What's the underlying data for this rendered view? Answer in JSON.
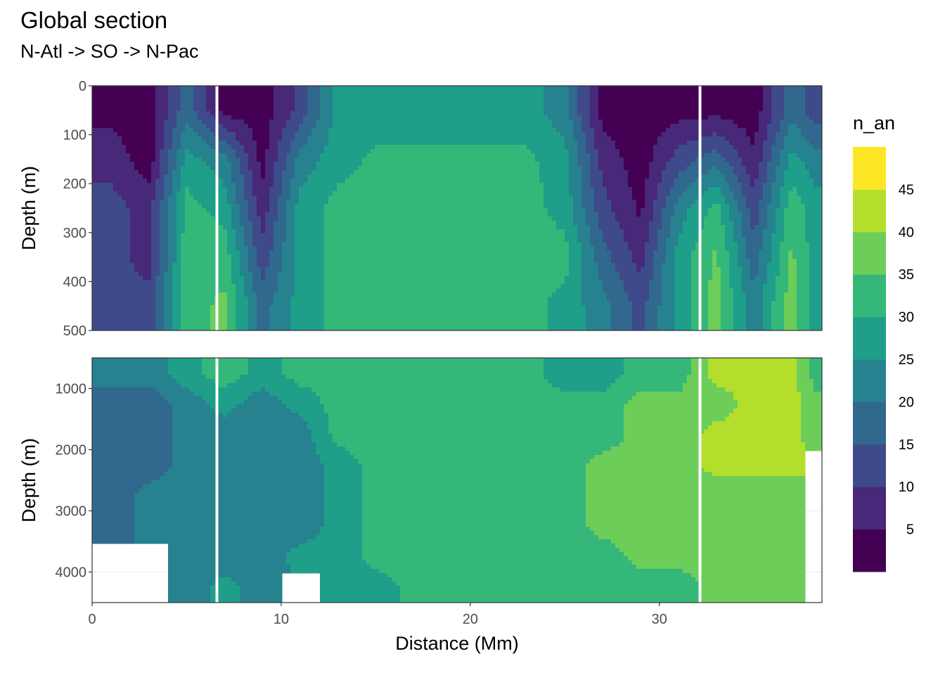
{
  "chart_data": {
    "type": "contour",
    "title": "Global section",
    "subtitle": "N-Atl -> SO -> N-Pac",
    "xlabel": "Distance (Mm)",
    "ylabel": "Depth (m)",
    "xlim": [
      0,
      38.6
    ],
    "x_ticks": [
      "0",
      "10",
      "20",
      "30"
    ],
    "x_tick_values": [
      0,
      10,
      20,
      30
    ],
    "gap_x": [
      6.6,
      32.15
    ],
    "panels": [
      {
        "name": "upper",
        "ylim": [
          0,
          500
        ],
        "y_ticks": [
          "0",
          "100",
          "200",
          "300",
          "400",
          "500"
        ],
        "y_tick_values": [
          0,
          100,
          200,
          300,
          400,
          500
        ],
        "depths": [
          50,
          150,
          250,
          350,
          450
        ]
      },
      {
        "name": "lower",
        "ylim": [
          500,
          4500
        ],
        "y_ticks": [
          "1000",
          "2000",
          "3000",
          "4000"
        ],
        "y_tick_values": [
          1000,
          2000,
          3000,
          4000
        ],
        "depths": [
          750,
          1250,
          1750,
          2250,
          2750,
          3250,
          3750,
          4250
        ]
      }
    ],
    "x": [
      1,
      3,
      5,
      7,
      9,
      11,
      13,
      15,
      17,
      19,
      21,
      23,
      25,
      27,
      29,
      31,
      33,
      35,
      37,
      38.3
    ],
    "values_upper": [
      [
        3,
        2,
        18,
        3,
        2,
        12,
        27,
        27,
        27,
        27,
        27,
        27,
        22,
        3,
        2,
        3,
        3,
        2,
        18,
        12
      ],
      [
        8,
        2,
        27,
        22,
        3,
        22,
        28,
        31,
        31,
        31,
        31,
        31,
        27,
        8,
        2,
        12,
        18,
        6,
        27,
        22
      ],
      [
        12,
        8,
        32,
        28,
        7,
        27,
        32,
        32,
        32,
        32,
        32,
        32,
        28,
        12,
        4,
        22,
        32,
        12,
        33,
        27
      ],
      [
        12,
        8,
        33,
        33,
        12,
        27,
        32,
        32,
        32,
        32,
        32,
        32,
        32,
        17,
        8,
        27,
        36,
        17,
        36,
        27
      ],
      [
        12,
        12,
        33,
        36,
        18,
        27,
        32,
        32,
        32,
        32,
        32,
        32,
        28,
        22,
        13,
        27,
        37,
        22,
        38,
        27
      ]
    ],
    "values_lower": [
      [
        22,
        22,
        28,
        33,
        28,
        32,
        32,
        32,
        32,
        32,
        32,
        32,
        27,
        27,
        32,
        32,
        42,
        42,
        42,
        32
      ],
      [
        17,
        17,
        22,
        27,
        22,
        27,
        32,
        32,
        32,
        32,
        32,
        32,
        32,
        32,
        37,
        37,
        37,
        42,
        42,
        37
      ],
      [
        17,
        17,
        22,
        22,
        22,
        22,
        32,
        32,
        32,
        32,
        32,
        32,
        32,
        32,
        37,
        37,
        42,
        42,
        42,
        37
      ],
      [
        17,
        17,
        22,
        22,
        22,
        22,
        27,
        32,
        32,
        32,
        32,
        32,
        32,
        37,
        37,
        37,
        42,
        42,
        42,
        null
      ],
      [
        17,
        22,
        22,
        22,
        22,
        22,
        27,
        32,
        32,
        32,
        32,
        32,
        32,
        37,
        37,
        37,
        37,
        37,
        37,
        null
      ],
      [
        17,
        22,
        22,
        22,
        22,
        22,
        27,
        32,
        32,
        32,
        32,
        32,
        32,
        37,
        37,
        37,
        37,
        37,
        37,
        null
      ],
      [
        null,
        null,
        22,
        22,
        22,
        27,
        27,
        32,
        32,
        32,
        32,
        32,
        32,
        32,
        37,
        37,
        37,
        37,
        37,
        null
      ],
      [
        null,
        null,
        22,
        27,
        22,
        null,
        27,
        27,
        32,
        32,
        32,
        32,
        32,
        32,
        32,
        32,
        37,
        37,
        37,
        null
      ]
    ],
    "legend": {
      "title": "n_an",
      "position": "right",
      "breaks": [
        0,
        5,
        10,
        15,
        20,
        25,
        30,
        35,
        40,
        45,
        50
      ],
      "labels": [
        "5",
        "10",
        "15",
        "20",
        "25",
        "30",
        "35",
        "40",
        "45"
      ],
      "colors": [
        "#440154",
        "#482878",
        "#3E4A89",
        "#31688E",
        "#26828E",
        "#1F9E89",
        "#35B779",
        "#6DCD59",
        "#B4DE2C",
        "#FDE725"
      ]
    }
  }
}
